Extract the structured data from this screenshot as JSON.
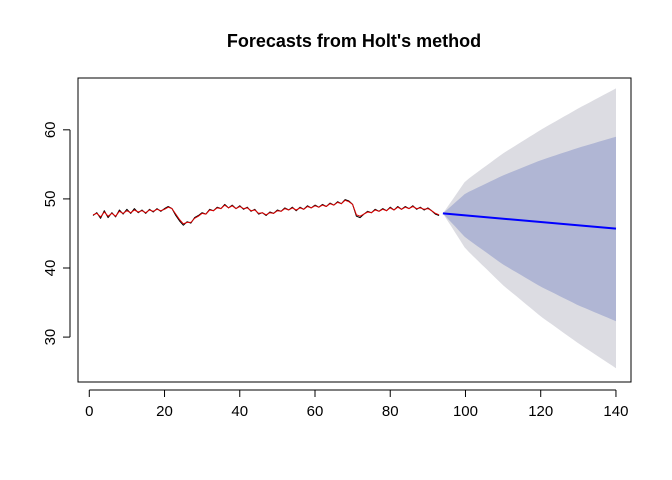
{
  "chart_data": {
    "type": "line",
    "title": "Forecasts from Holt's method",
    "xlabel": "",
    "ylabel": "",
    "xlim": [
      -3,
      144
    ],
    "ylim": [
      23.5,
      67.5
    ],
    "x_ticks": [
      0,
      20,
      40,
      60,
      80,
      100,
      120,
      140
    ],
    "y_ticks": [
      30,
      40,
      50,
      60
    ],
    "grid": false,
    "legend": "none",
    "colors": {
      "observed": "#000000",
      "fitted": "#dd0000",
      "forecast": "#0000ff",
      "band_80": "#b0b6d4",
      "band_95": "#dcdce2"
    },
    "series": [
      {
        "role": "observed",
        "x": [
          1,
          2,
          3,
          4,
          5,
          6,
          7,
          8,
          9,
          10,
          11,
          12,
          13,
          14,
          15,
          16,
          17,
          18,
          19,
          20,
          21,
          22,
          23,
          24,
          25,
          26,
          27,
          28,
          29,
          30,
          31,
          32,
          33,
          34,
          35,
          36,
          37,
          38,
          39,
          40,
          41,
          42,
          43,
          44,
          45,
          46,
          47,
          48,
          49,
          50,
          51,
          52,
          53,
          54,
          55,
          56,
          57,
          58,
          59,
          60,
          61,
          62,
          63,
          64,
          65,
          66,
          67,
          68,
          69,
          70,
          71,
          72,
          73,
          74,
          75,
          76,
          77,
          78,
          79,
          80,
          81,
          82,
          83,
          84,
          85,
          86,
          87,
          88,
          89,
          90,
          91,
          92,
          93
        ],
        "y": [
          47.6,
          48.0,
          47.2,
          48.3,
          47.3,
          48.0,
          47.4,
          48.4,
          47.8,
          48.5,
          47.9,
          48.6,
          48.0,
          48.4,
          47.9,
          48.5,
          48.1,
          48.6,
          48.2,
          48.6,
          48.9,
          48.6,
          47.6,
          46.8,
          46.2,
          46.7,
          46.5,
          47.3,
          47.6,
          48.0,
          47.8,
          48.5,
          48.3,
          48.8,
          48.6,
          49.2,
          48.7,
          49.1,
          48.6,
          49.0,
          48.5,
          48.8,
          48.2,
          48.5,
          47.8,
          48.0,
          47.6,
          48.1,
          47.9,
          48.4,
          48.2,
          48.7,
          48.4,
          48.8,
          48.3,
          48.8,
          48.5,
          49.0,
          48.7,
          49.1,
          48.8,
          49.2,
          48.9,
          49.4,
          49.1,
          49.6,
          49.3,
          49.9,
          49.7,
          49.2,
          47.5,
          47.3,
          47.8,
          48.2,
          48.0,
          48.5,
          48.2,
          48.6,
          48.3,
          48.8,
          48.4,
          48.9,
          48.5,
          48.9,
          48.6,
          49.0,
          48.5,
          48.8,
          48.4,
          48.7,
          48.3,
          47.8,
          47.6
        ]
      },
      {
        "role": "fitted",
        "x": [
          1,
          2,
          3,
          4,
          5,
          6,
          7,
          8,
          9,
          10,
          11,
          12,
          13,
          14,
          15,
          16,
          17,
          18,
          19,
          20,
          21,
          22,
          23,
          24,
          25,
          26,
          27,
          28,
          29,
          30,
          31,
          32,
          33,
          34,
          35,
          36,
          37,
          38,
          39,
          40,
          41,
          42,
          43,
          44,
          45,
          46,
          47,
          48,
          49,
          50,
          51,
          52,
          53,
          54,
          55,
          56,
          57,
          58,
          59,
          60,
          61,
          62,
          63,
          64,
          65,
          66,
          67,
          68,
          69,
          70,
          71,
          72,
          73,
          74,
          75,
          76,
          77,
          78,
          79,
          80,
          81,
          82,
          83,
          84,
          85,
          86,
          87,
          88,
          89,
          90,
          91,
          92,
          93
        ],
        "y": [
          47.7,
          47.9,
          47.4,
          48.1,
          47.5,
          47.9,
          47.5,
          48.2,
          47.9,
          48.3,
          48.0,
          48.4,
          48.1,
          48.3,
          48.0,
          48.4,
          48.2,
          48.5,
          48.3,
          48.5,
          48.8,
          48.6,
          47.8,
          47.0,
          46.4,
          46.6,
          46.6,
          47.2,
          47.5,
          47.9,
          47.8,
          48.4,
          48.3,
          48.7,
          48.6,
          49.1,
          48.7,
          49.0,
          48.6,
          48.9,
          48.6,
          48.7,
          48.3,
          48.4,
          47.9,
          48.0,
          47.7,
          48.0,
          47.9,
          48.3,
          48.2,
          48.6,
          48.4,
          48.7,
          48.4,
          48.7,
          48.5,
          48.9,
          48.7,
          49.0,
          48.8,
          49.1,
          48.9,
          49.3,
          49.1,
          49.5,
          49.3,
          49.8,
          49.6,
          49.2,
          47.7,
          47.5,
          47.8,
          48.1,
          48.0,
          48.4,
          48.2,
          48.5,
          48.3,
          48.7,
          48.4,
          48.8,
          48.5,
          48.8,
          48.6,
          48.9,
          48.6,
          48.7,
          48.5,
          48.6,
          48.3,
          47.9,
          47.7
        ]
      },
      {
        "role": "forecast",
        "x": [
          94,
          140
        ],
        "y": [
          47.9,
          45.7
        ]
      }
    ],
    "intervals": {
      "x": [
        94,
        100,
        110,
        120,
        130,
        140
      ],
      "lower80": [
        47.9,
        44.4,
        40.5,
        37.3,
        34.6,
        32.3
      ],
      "upper80": [
        47.9,
        50.8,
        53.4,
        55.6,
        57.4,
        59.0
      ],
      "lower95": [
        47.9,
        42.8,
        37.5,
        33.0,
        29.1,
        25.5
      ],
      "upper95": [
        47.9,
        52.6,
        56.6,
        60.0,
        63.1,
        66.0
      ]
    }
  }
}
